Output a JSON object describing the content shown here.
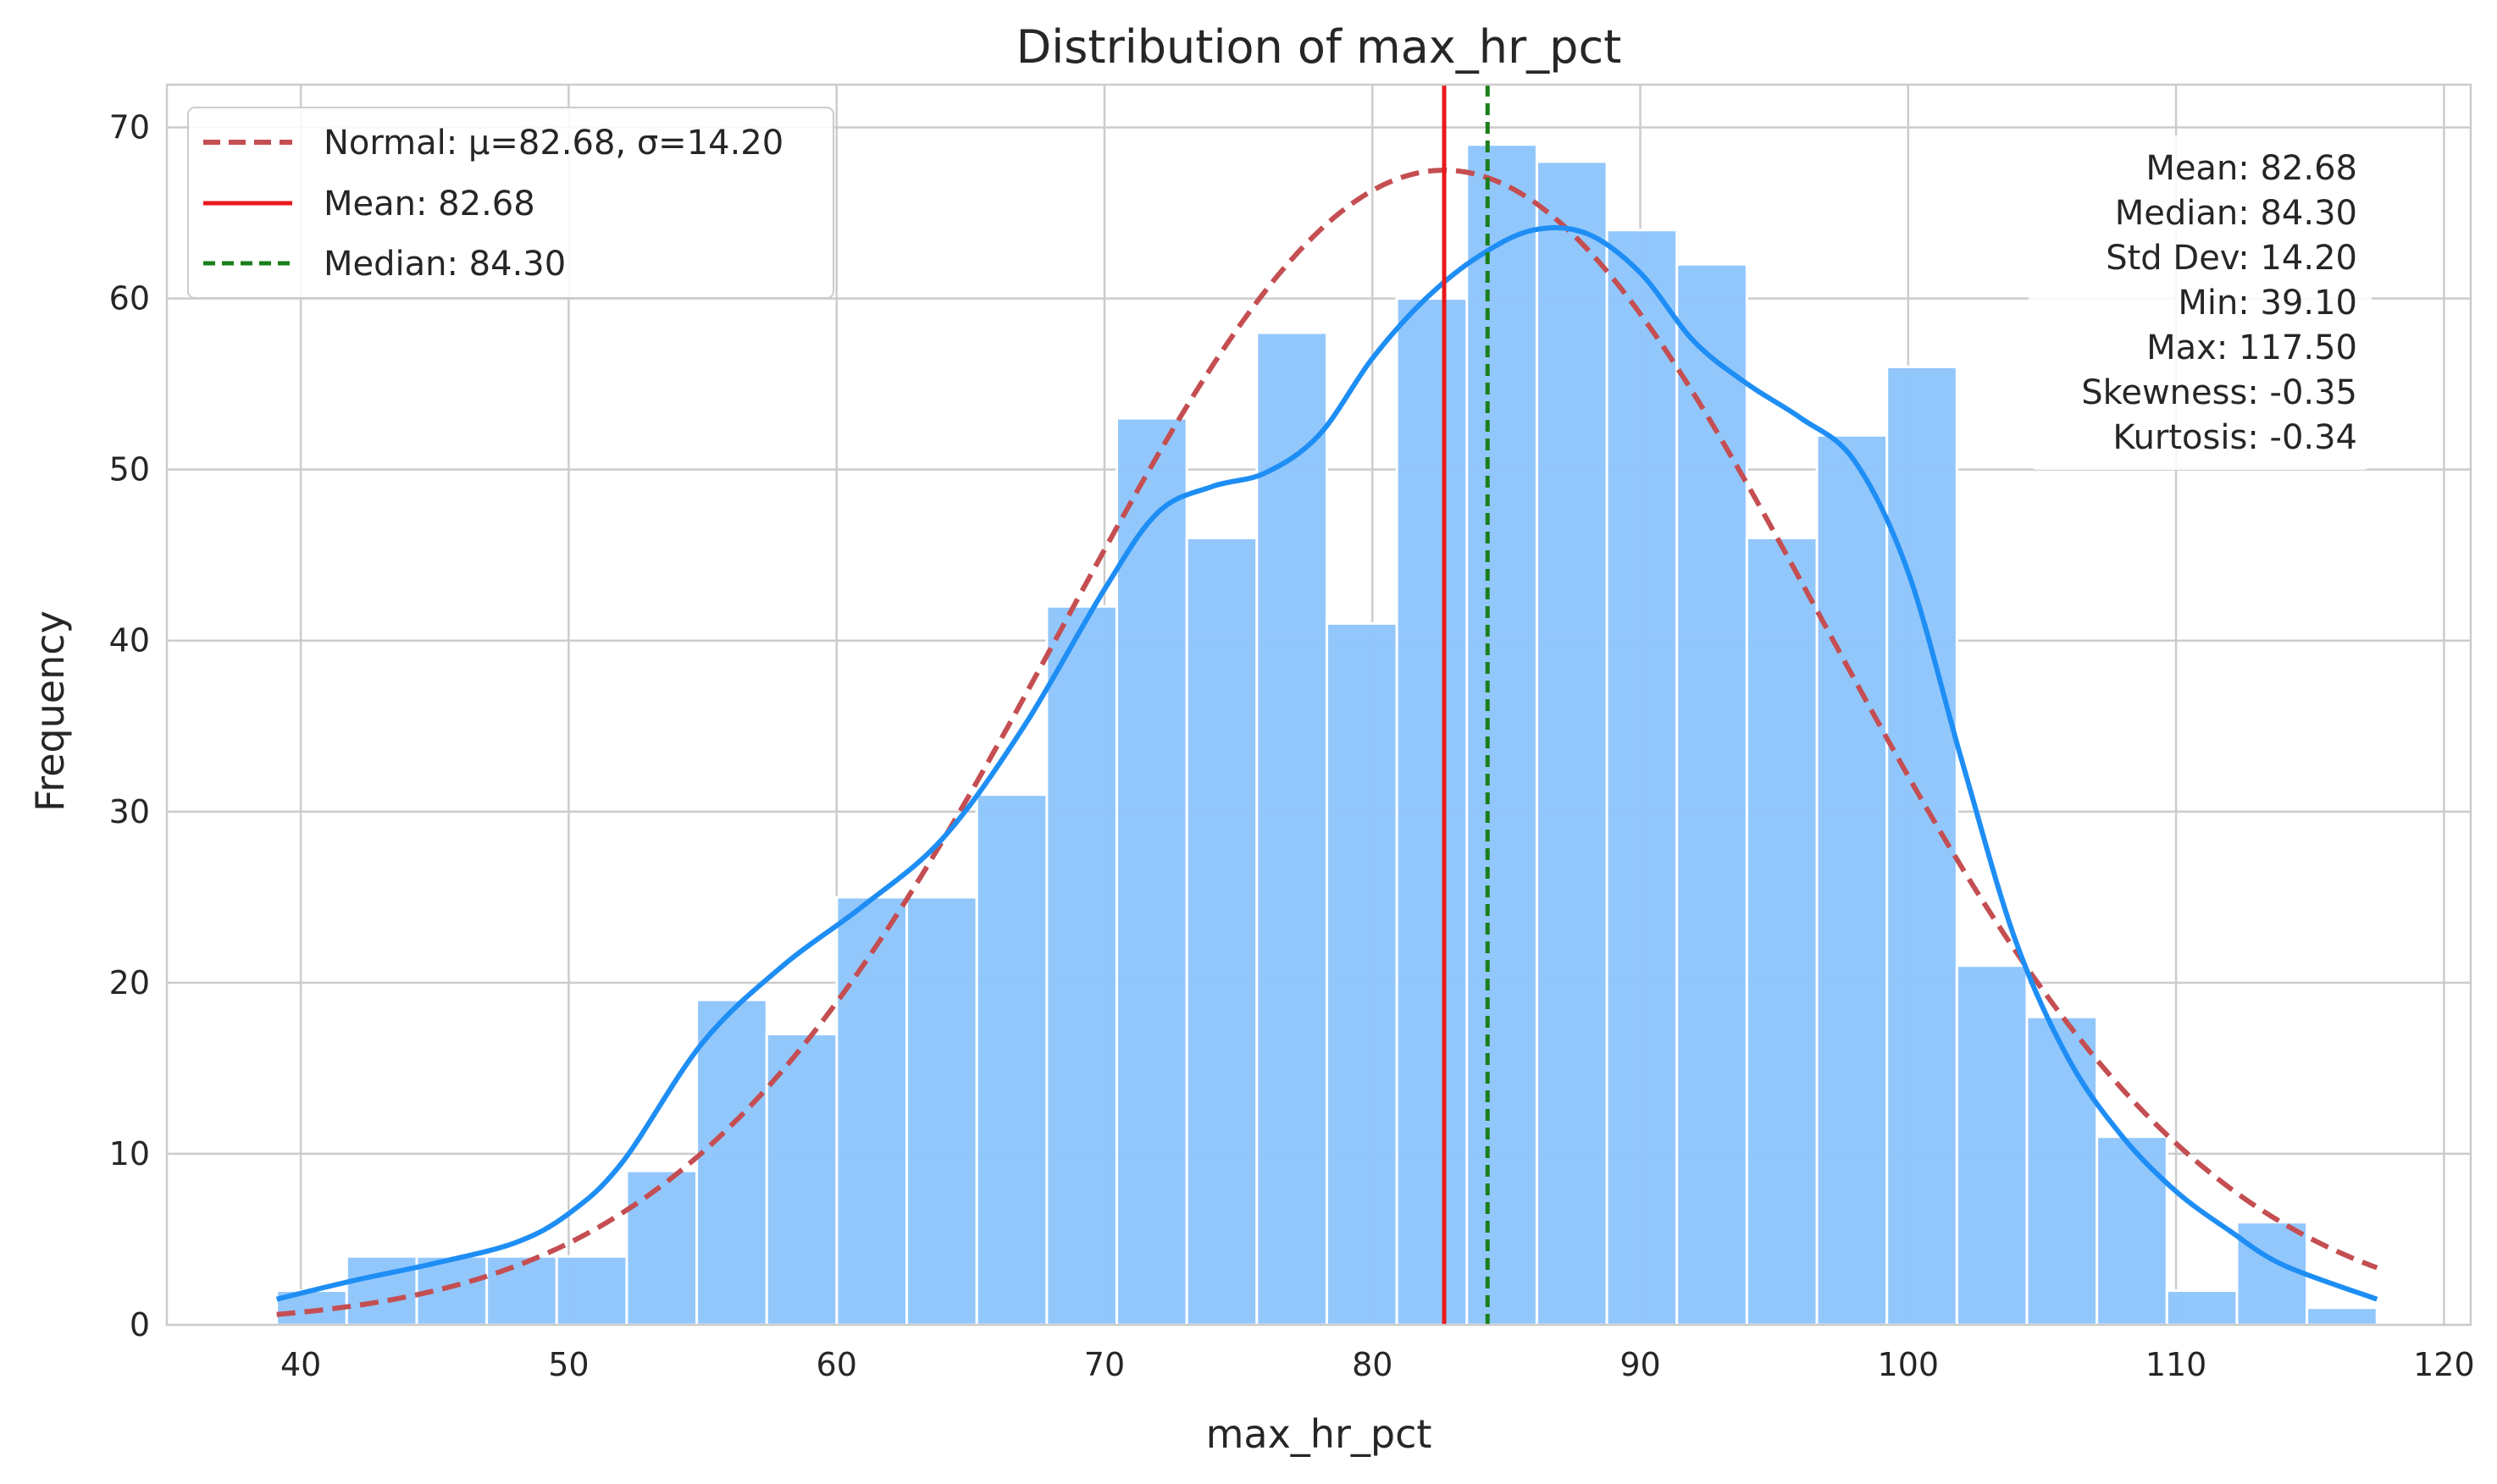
{
  "chart_data": {
    "type": "bar",
    "title": "Distribution of max_hr_pct",
    "xlabel": "max_hr_pct",
    "ylabel": "Frequency",
    "xlim": [
      35,
      121
    ],
    "ylim": [
      0,
      72.5
    ],
    "xticks": [
      40,
      50,
      60,
      70,
      80,
      90,
      100,
      110,
      120
    ],
    "yticks": [
      0,
      10,
      20,
      30,
      40,
      50,
      60,
      70
    ],
    "grid": true,
    "bin_start": 39.1,
    "bin_width": 2.6133,
    "values": [
      2,
      4,
      4,
      4,
      4,
      9,
      19,
      17,
      25,
      25,
      31,
      42,
      53,
      46,
      58,
      41,
      60,
      69,
      68,
      64,
      62,
      46,
      52,
      56,
      21,
      18,
      11,
      2,
      6,
      1
    ],
    "kde": {
      "name": "KDE",
      "x": [
        39.1,
        42,
        45,
        48,
        50,
        52,
        55,
        58,
        61,
        64,
        67,
        70,
        72,
        74,
        76,
        78,
        80,
        82,
        84,
        86,
        88,
        90,
        92,
        94,
        96,
        98,
        100,
        102,
        104,
        106,
        108,
        110,
        112,
        114,
        117.5
      ],
      "y": [
        1.5,
        2.6,
        3.6,
        4.8,
        6.5,
        9.5,
        16.5,
        21.0,
        24.5,
        28.5,
        35.0,
        43.0,
        47.5,
        49.0,
        49.8,
        52.0,
        56.5,
        60.0,
        62.5,
        64.0,
        63.8,
        61.5,
        57.5,
        55.0,
        53.0,
        50.5,
        44.0,
        33.0,
        22.5,
        15.5,
        11.0,
        7.8,
        5.5,
        3.5,
        1.5
      ]
    },
    "normal": {
      "label": "Normal: μ=82.68, σ=14.20",
      "mu": 82.68,
      "sigma": 14.2,
      "peak": 67.5
    },
    "mean": {
      "value": 82.68,
      "label": "Mean: 82.68"
    },
    "median": {
      "value": 84.3,
      "label": "Median: 84.30"
    },
    "legend_position": "upper-left",
    "stats": [
      "Mean: 82.68",
      "Median: 84.30",
      "Std Dev: 14.20",
      "Min: 39.10",
      "Max: 117.50",
      "Skewness: -0.35",
      "Kurtosis: -0.34"
    ],
    "colors": {
      "bar": "#90C6FC",
      "kde": "#1E8EF5",
      "normal": "#C44E52",
      "mean": "#E8191C",
      "median": "#1A7F1A",
      "grid": "#CCCCCC"
    }
  }
}
